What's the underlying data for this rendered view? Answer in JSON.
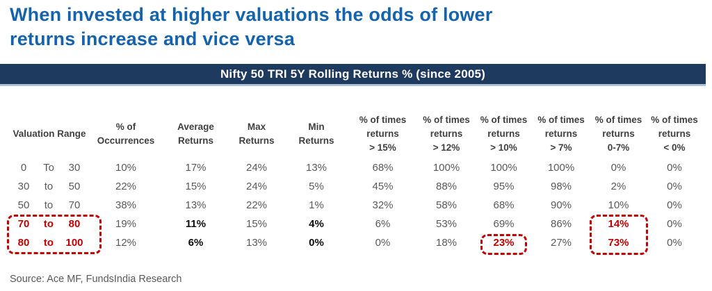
{
  "title": {
    "line1": "When invested at higher valuations the odds of lower",
    "line2": "returns increase and vice versa"
  },
  "banner": {
    "text": "Nifty 50 TRI 5Y Rolling Returns % (since 2005)"
  },
  "colors": {
    "title_blue": "#1463AC",
    "banner_navy": "#1F3A5F",
    "banner_underline": "#ADC1D9",
    "highlight_red": "#C00000",
    "body_gray": "#595959",
    "header_gray": "#404040"
  },
  "table": {
    "headers": [
      "Valuation Range",
      "% of\nOccurrences",
      "Average\nReturns",
      "Max\nReturns",
      "Min\nReturns",
      "% of times\nreturns\n> 15%",
      "% of times\nreturns\n> 12%",
      "% of times\nreturns\n> 10%",
      "% of times\nreturns\n> 7%",
      "% of times\nreturns\n0-7%",
      "% of times\nreturns\n< 0%"
    ],
    "rows": [
      {
        "range": [
          "0",
          "To",
          "30"
        ],
        "range_highlight": false,
        "cells": [
          {
            "v": "10%",
            "s": "normal"
          },
          {
            "v": "17%",
            "s": "normal"
          },
          {
            "v": "24%",
            "s": "normal"
          },
          {
            "v": "13%",
            "s": "normal"
          },
          {
            "v": "68%",
            "s": "normal"
          },
          {
            "v": "100%",
            "s": "normal"
          },
          {
            "v": "100%",
            "s": "normal"
          },
          {
            "v": "100%",
            "s": "normal"
          },
          {
            "v": "0%",
            "s": "normal"
          },
          {
            "v": "0%",
            "s": "normal"
          }
        ]
      },
      {
        "range": [
          "30",
          "to",
          "50"
        ],
        "range_highlight": false,
        "cells": [
          {
            "v": "22%",
            "s": "normal"
          },
          {
            "v": "15%",
            "s": "normal"
          },
          {
            "v": "24%",
            "s": "normal"
          },
          {
            "v": "5%",
            "s": "normal"
          },
          {
            "v": "45%",
            "s": "normal"
          },
          {
            "v": "88%",
            "s": "normal"
          },
          {
            "v": "95%",
            "s": "normal"
          },
          {
            "v": "98%",
            "s": "normal"
          },
          {
            "v": "2%",
            "s": "normal"
          },
          {
            "v": "0%",
            "s": "normal"
          }
        ]
      },
      {
        "range": [
          "50",
          "to",
          "70"
        ],
        "range_highlight": false,
        "cells": [
          {
            "v": "38%",
            "s": "normal"
          },
          {
            "v": "13%",
            "s": "normal"
          },
          {
            "v": "22%",
            "s": "normal"
          },
          {
            "v": "1%",
            "s": "normal"
          },
          {
            "v": "32%",
            "s": "normal"
          },
          {
            "v": "58%",
            "s": "normal"
          },
          {
            "v": "68%",
            "s": "normal"
          },
          {
            "v": "90%",
            "s": "normal"
          },
          {
            "v": "10%",
            "s": "normal"
          },
          {
            "v": "0%",
            "s": "normal"
          }
        ]
      },
      {
        "range": [
          "70",
          "to",
          "80"
        ],
        "range_highlight": true,
        "cells": [
          {
            "v": "19%",
            "s": "normal"
          },
          {
            "v": "11%",
            "s": "bold"
          },
          {
            "v": "15%",
            "s": "normal"
          },
          {
            "v": "4%",
            "s": "bold"
          },
          {
            "v": "6%",
            "s": "normal"
          },
          {
            "v": "53%",
            "s": "normal"
          },
          {
            "v": "69%",
            "s": "normal"
          },
          {
            "v": "86%",
            "s": "normal"
          },
          {
            "v": "14%",
            "s": "red"
          },
          {
            "v": "0%",
            "s": "normal"
          }
        ]
      },
      {
        "range": [
          "80",
          "to",
          "100"
        ],
        "range_highlight": true,
        "cells": [
          {
            "v": "12%",
            "s": "normal"
          },
          {
            "v": "6%",
            "s": "bold"
          },
          {
            "v": "13%",
            "s": "normal"
          },
          {
            "v": "0%",
            "s": "bold"
          },
          {
            "v": "0%",
            "s": "normal"
          },
          {
            "v": "18%",
            "s": "normal"
          },
          {
            "v": "23%",
            "s": "red"
          },
          {
            "v": "27%",
            "s": "normal"
          },
          {
            "v": "73%",
            "s": "red"
          },
          {
            "v": "0%",
            "s": "normal"
          }
        ]
      }
    ]
  },
  "source": "Source: Ace MF, FundsIndia Research"
}
